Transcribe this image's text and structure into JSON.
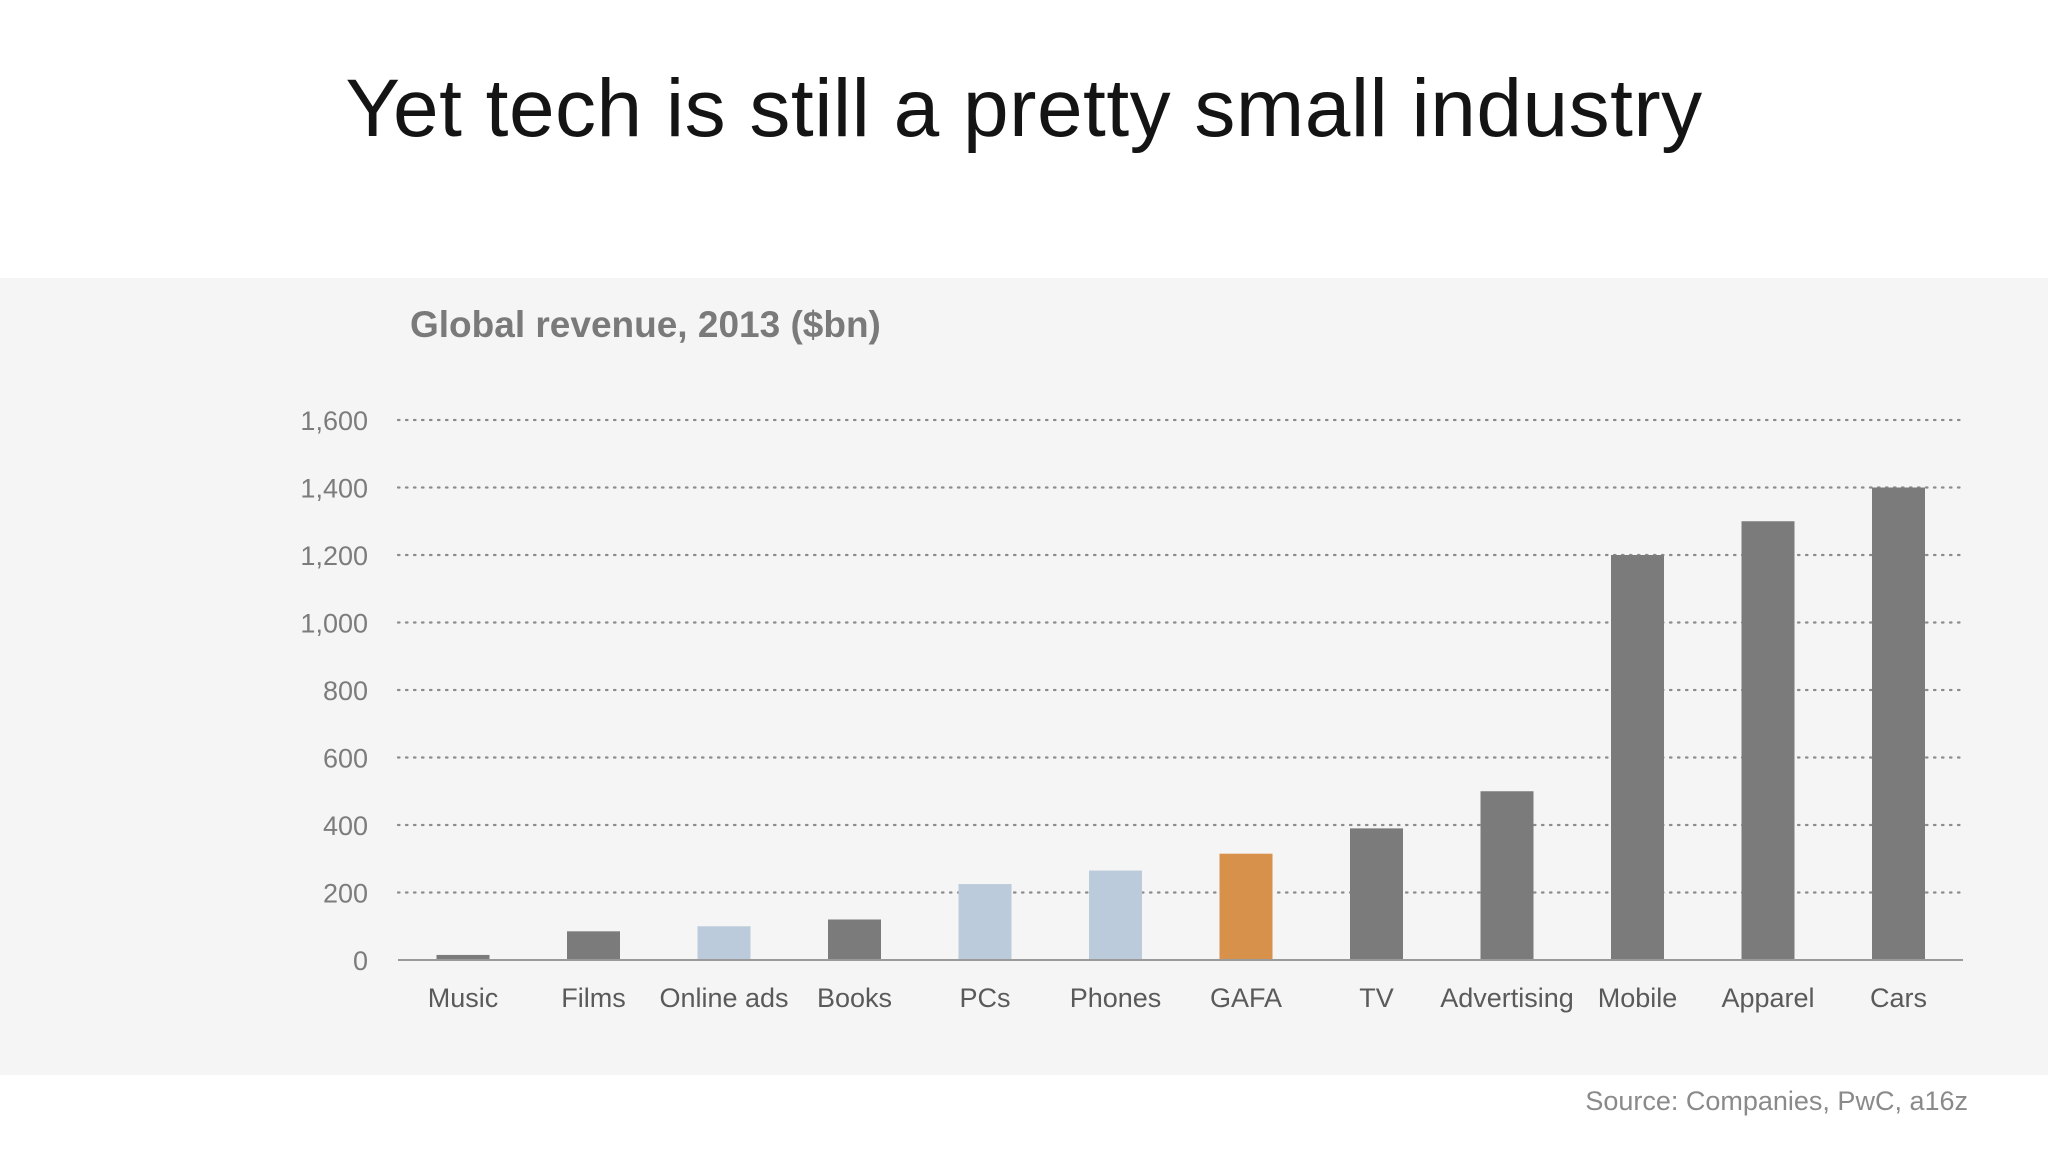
{
  "slide": {
    "title": "Yet tech is still a pretty small industry",
    "source": "Source: Companies, PwC, a16z"
  },
  "chart_data": {
    "type": "bar",
    "title": "Global revenue, 2013 ($bn)",
    "xlabel": "",
    "ylabel": "",
    "ylim": [
      0,
      1600
    ],
    "yticks": [
      0,
      200,
      400,
      600,
      800,
      1000,
      1200,
      1400,
      1600
    ],
    "ytick_labels": [
      "0",
      "200",
      "400",
      "600",
      "800",
      "1,000",
      "1,200",
      "1,400",
      "1,600"
    ],
    "grid": true,
    "legend": "none",
    "categories": [
      "Music",
      "Films",
      "Online ads",
      "Books",
      "PCs",
      "Phones",
      "GAFA",
      "TV",
      "Advertising",
      "Mobile",
      "Apparel",
      "Cars"
    ],
    "values": [
      15,
      85,
      100,
      120,
      225,
      265,
      315,
      390,
      500,
      1200,
      1300,
      1400
    ],
    "bar_colors": [
      "#7b7b7b",
      "#7b7b7b",
      "#bccbdb",
      "#7b7b7b",
      "#bccbdb",
      "#bccbdb",
      "#d8914a",
      "#7b7b7b",
      "#7b7b7b",
      "#7b7b7b",
      "#7b7b7b",
      "#7b7b7b"
    ]
  }
}
